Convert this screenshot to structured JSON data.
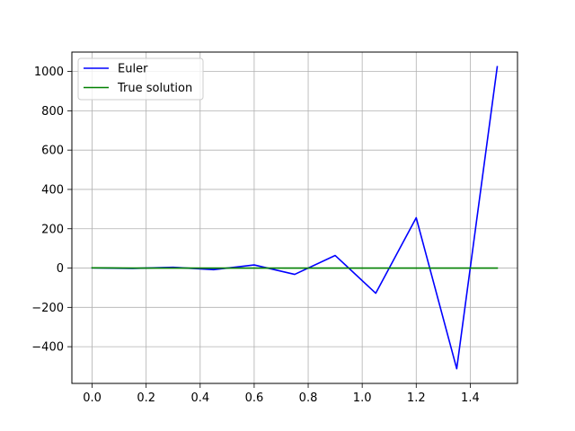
{
  "chart_data": {
    "type": "line",
    "title": "",
    "xlabel": "",
    "ylabel": "",
    "xlim": [
      -0.075,
      1.575
    ],
    "ylim": [
      -586.7,
      1098.6
    ],
    "grid": true,
    "legend_position": "top-left",
    "x_ticks": [
      {
        "value": 0.0,
        "label": "0.0"
      },
      {
        "value": 0.2,
        "label": "0.2"
      },
      {
        "value": 0.4,
        "label": "0.4"
      },
      {
        "value": 0.6,
        "label": "0.6"
      },
      {
        "value": 0.8,
        "label": "0.8"
      },
      {
        "value": 1.0,
        "label": "1.0"
      },
      {
        "value": 1.2,
        "label": "1.2"
      },
      {
        "value": 1.4,
        "label": "1.4"
      }
    ],
    "y_ticks": [
      {
        "value": -400,
        "label": "−400"
      },
      {
        "value": -200,
        "label": "−200"
      },
      {
        "value": 0,
        "label": "0"
      },
      {
        "value": 200,
        "label": "200"
      },
      {
        "value": 400,
        "label": "400"
      },
      {
        "value": 600,
        "label": "600"
      },
      {
        "value": 800,
        "label": "800"
      },
      {
        "value": 1000,
        "label": "1000"
      }
    ],
    "series": [
      {
        "name": "Euler",
        "color": "#0000ff",
        "x": [
          0.0,
          0.15,
          0.3,
          0.45,
          0.6,
          0.75,
          0.9,
          1.05,
          1.2,
          1.35,
          1.5
        ],
        "y": [
          1,
          -2,
          4,
          -8,
          16,
          -32,
          64,
          -128,
          256,
          -512,
          1024
        ]
      },
      {
        "name": "True solution",
        "color": "#008000",
        "x": [
          0.0,
          0.15,
          0.3,
          0.45,
          0.6,
          0.75,
          0.9,
          1.05,
          1.2,
          1.35,
          1.5
        ],
        "y": [
          1,
          0.1,
          0.01,
          0,
          0,
          0,
          0,
          0,
          0,
          0,
          0
        ]
      }
    ]
  }
}
